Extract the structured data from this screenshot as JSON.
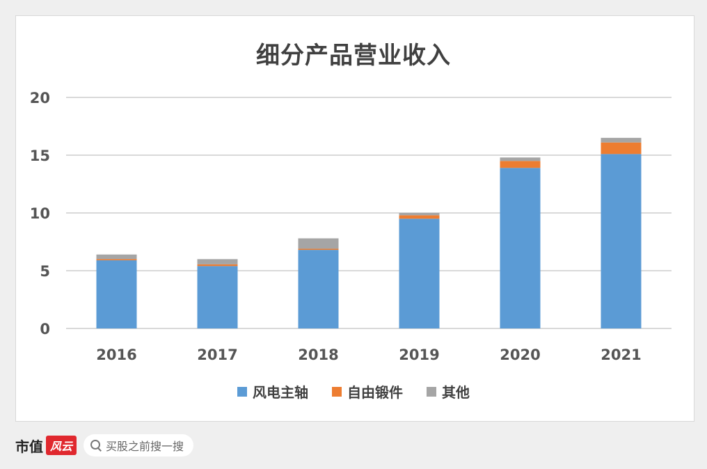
{
  "chart_data": {
    "type": "bar",
    "stacked": true,
    "title": "细分产品营业收入",
    "xlabel": "",
    "ylabel": "",
    "ylim": [
      0,
      20
    ],
    "yticks": [
      "0",
      "5",
      "10",
      "15",
      "20"
    ],
    "grid": true,
    "legend_position": "bottom",
    "categories": [
      "2016",
      "2017",
      "2018",
      "2019",
      "2020",
      "2021"
    ],
    "series": [
      {
        "name": "风电主轴",
        "color": "#5b9bd5",
        "values": [
          5.9,
          5.4,
          6.8,
          9.5,
          13.9,
          15.1
        ]
      },
      {
        "name": "自由锻件",
        "color": "#ed7d31",
        "values": [
          0.1,
          0.15,
          0.1,
          0.3,
          0.6,
          1.0
        ]
      },
      {
        "name": "其他",
        "color": "#a5a5a5",
        "values": [
          0.4,
          0.45,
          0.9,
          0.2,
          0.3,
          0.4
        ]
      }
    ]
  },
  "footer": {
    "brand": "市值",
    "brand_badge": "风云",
    "search_text": "买股之前搜一搜"
  }
}
